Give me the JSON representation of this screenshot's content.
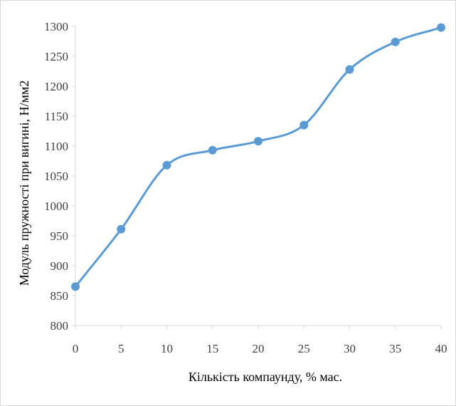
{
  "chart_data": {
    "type": "line",
    "x": [
      0,
      5,
      10,
      15,
      20,
      25,
      30,
      35,
      40
    ],
    "series": [
      {
        "values": [
          865,
          961,
          1068,
          1093,
          1108,
          1135,
          1228,
          1274,
          1298
        ]
      }
    ],
    "xlabel": "Кількість компаунду, % мас.",
    "ylabel": "Модуль пружності при вигині, Н/мм2",
    "xlim": [
      0,
      40
    ],
    "ylim": [
      800,
      1300
    ],
    "xticks": [
      0,
      5,
      10,
      15,
      20,
      25,
      30,
      35,
      40
    ],
    "yticks": [
      800,
      850,
      900,
      950,
      1000,
      1050,
      1100,
      1150,
      1200,
      1250,
      1300
    ],
    "grid": false,
    "legend": "none",
    "line_color": "#5b9bd5",
    "axis_color": "#d9d9d9",
    "smooth": true
  }
}
